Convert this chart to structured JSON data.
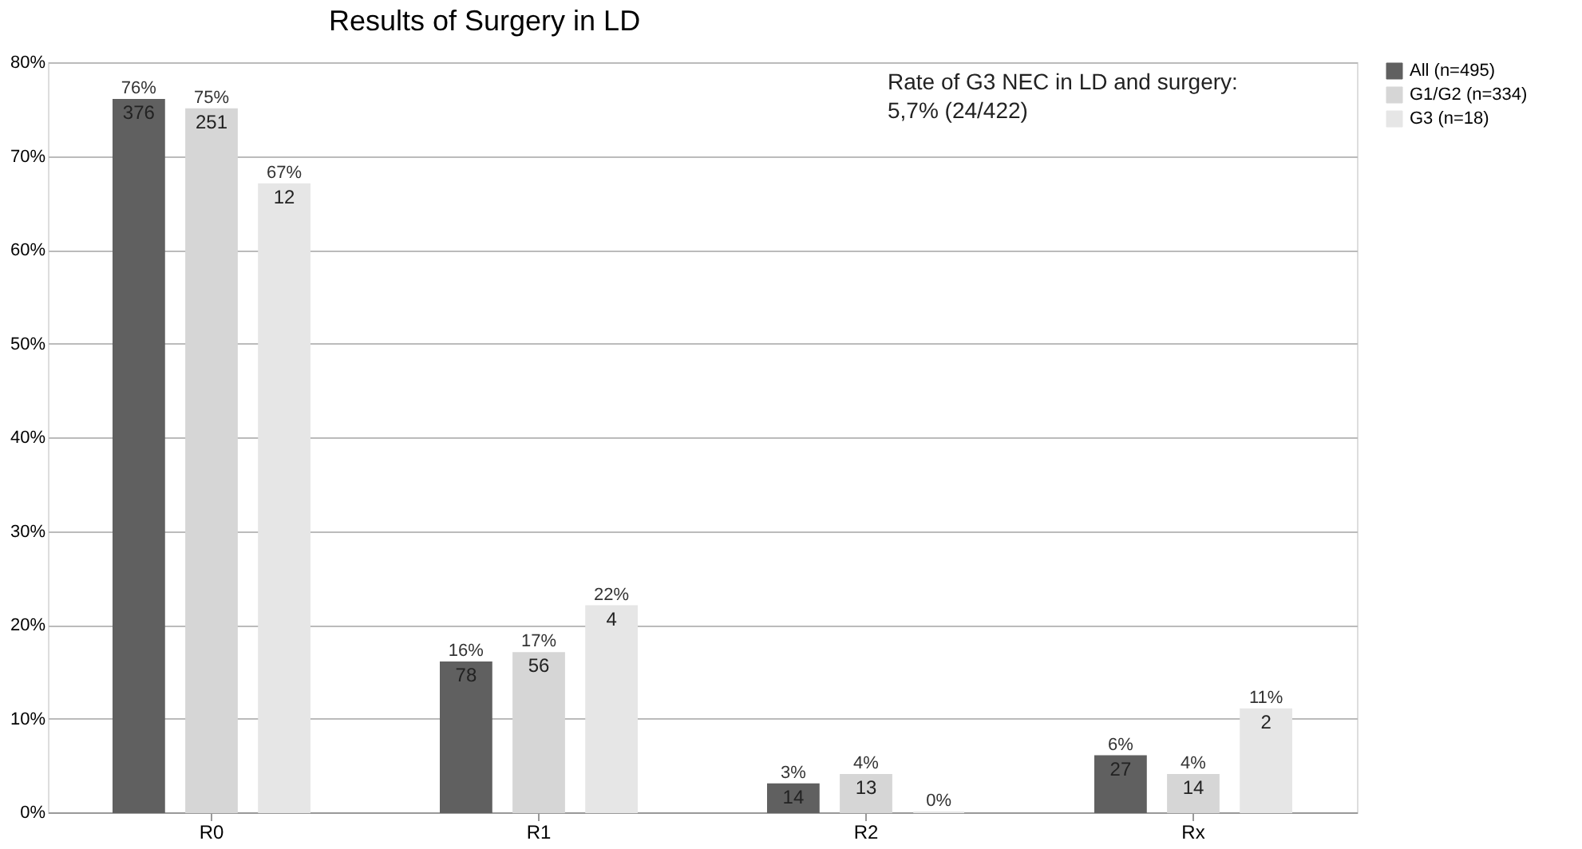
{
  "chart_data": {
    "type": "bar",
    "title": "Results of Surgery in LD",
    "categories": [
      "R0",
      "R1",
      "R2",
      "Rx"
    ],
    "series": [
      {
        "name": "All (n=495)",
        "color": "#606060",
        "values": [
          76,
          16,
          3,
          6
        ],
        "value_labels": [
          "76%",
          "16%",
          "3%",
          "6%"
        ]
      },
      {
        "name": "G1/G2 (n=334)",
        "color": "#d6d6d6",
        "values": [
          75,
          17,
          4,
          4
        ],
        "value_labels": [
          "75%",
          "17%",
          "4%",
          "4%"
        ]
      },
      {
        "name": "G3 (n=18)",
        "color": "#e6e6e6",
        "values": [
          67,
          22,
          0,
          11
        ],
        "value_labels": [
          "67%",
          "22%",
          "0%",
          "11%"
        ]
      }
    ],
    "ylim": [
      0,
      80
    ],
    "yticks": [
      {
        "value": 0,
        "label": "0%"
      },
      {
        "value": 10,
        "label": "10%"
      },
      {
        "value": 20,
        "label": "20%"
      },
      {
        "value": 30,
        "label": "30%"
      },
      {
        "value": 40,
        "label": "40%"
      },
      {
        "value": 50,
        "label": "50%"
      },
      {
        "value": 60,
        "label": "60%"
      },
      {
        "value": 70,
        "label": "70%"
      },
      {
        "value": 80,
        "label": "80%"
      }
    ],
    "grid": "y",
    "legend": "right",
    "annotations": [
      "Rate of G3 NEC in LD and surgery:\n5,7% (24/422)",
      "376",
      "251",
      "12",
      "78",
      "56",
      "4",
      "14",
      "13",
      "27",
      "14",
      "2"
    ]
  }
}
